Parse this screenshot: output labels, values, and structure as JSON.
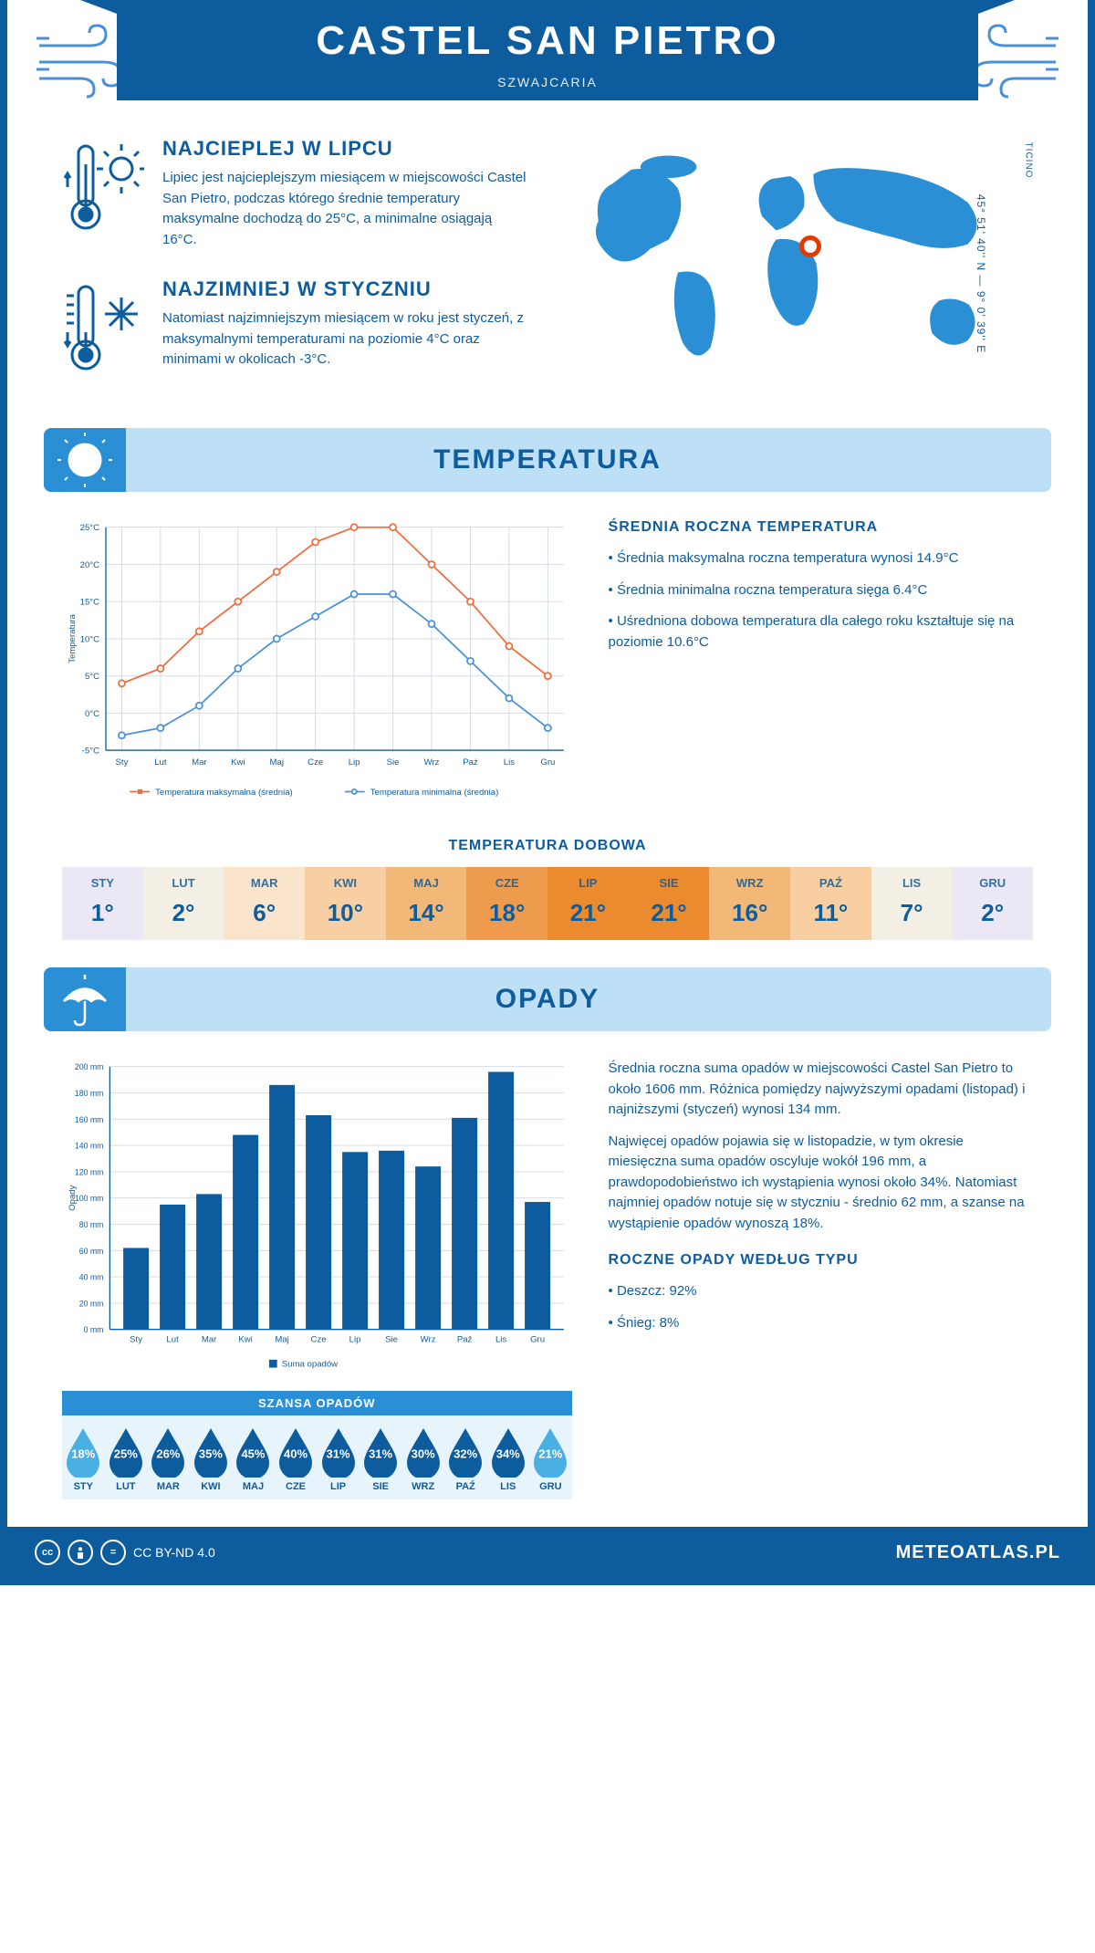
{
  "header": {
    "title": "CASTEL SAN PIETRO",
    "country": "SZWAJCARIA",
    "coords": "45° 51' 40'' N — 9° 0' 39'' E",
    "region": "TICINO"
  },
  "world_marker": {
    "left_pct": 50,
    "top_pct": 36
  },
  "facts": {
    "hot": {
      "title": "NAJCIEPLEJ W LIPCU",
      "text": "Lipiec jest najcieplejszym miesiącem w miejscowości Castel San Pietro, podczas którego średnie temperatury maksymalne dochodzą do 25°C, a minimalne osiągają 16°C."
    },
    "cold": {
      "title": "NAJZIMNIEJ W STYCZNIU",
      "text": "Natomiast najzimniejszym miesiącem w roku jest styczeń, z maksymalnymi temperaturami na poziomie 4°C oraz minimami w okolicach -3°C."
    }
  },
  "months_short": [
    "Sty",
    "Lut",
    "Mar",
    "Kwi",
    "Maj",
    "Cze",
    "Lip",
    "Sie",
    "Wrz",
    "Paź",
    "Lis",
    "Gru"
  ],
  "months_upper": [
    "STY",
    "LUT",
    "MAR",
    "KWI",
    "MAJ",
    "CZE",
    "LIP",
    "SIE",
    "WRZ",
    "PAŹ",
    "LIS",
    "GRU"
  ],
  "temperature": {
    "section_title": "TEMPERATURA",
    "chart": {
      "type": "line",
      "ylabel": "Temperatura",
      "ylim": [
        -5,
        25
      ],
      "yticks": [
        -5,
        0,
        5,
        10,
        15,
        20,
        25
      ],
      "ytick_labels": [
        "-5°C",
        "0°C",
        "5°C",
        "10°C",
        "15°C",
        "20°C",
        "25°C"
      ],
      "grid_color": "#d0d7e2",
      "axis_color": "#0d5c9e",
      "series": [
        {
          "name": "Temperatura maksymalna (średnia)",
          "color": "#f26b3a",
          "values": [
            4,
            6,
            11,
            15,
            19,
            23,
            25,
            25,
            20,
            15,
            9,
            5
          ]
        },
        {
          "name": "Temperatura minimalna (średnia)",
          "color": "#4a90d9",
          "values": [
            -3,
            -2,
            1,
            6,
            10,
            13,
            16,
            16,
            12,
            7,
            2,
            -2
          ]
        }
      ],
      "legend_max": "Temperatura maksymalna (średnia)",
      "legend_min": "Temperatura minimalna (średnia)"
    },
    "summary_title": "ŚREDNIA ROCZNA TEMPERATURA",
    "summary": [
      "• Średnia maksymalna roczna temperatura wynosi 14.9°C",
      "• Średnia minimalna roczna temperatura sięga 6.4°C",
      "• Uśredniona dobowa temperatura dla całego roku kształtuje się na poziomie 10.6°C"
    ],
    "daily_title": "TEMPERATURA DOBOWA",
    "daily": {
      "values": [
        "1°",
        "2°",
        "6°",
        "10°",
        "14°",
        "18°",
        "21°",
        "21°",
        "16°",
        "11°",
        "7°",
        "2°"
      ],
      "bg_colors": [
        "#ece7f4",
        "#f4efe5",
        "#fae4cc",
        "#f7cfa3",
        "#f2b878",
        "#ee9b4d",
        "#ec8a2f",
        "#ec8a2f",
        "#f2b878",
        "#f7cfa3",
        "#f4efe5",
        "#ece7f4"
      ]
    }
  },
  "precip": {
    "section_title": "OPADY",
    "chart": {
      "type": "bar",
      "ylabel": "Opady",
      "ylim": [
        0,
        200
      ],
      "yticks": [
        0,
        20,
        40,
        60,
        80,
        100,
        120,
        140,
        160,
        180,
        200
      ],
      "ytick_labels": [
        "0 mm",
        "20 mm",
        "40 mm",
        "60 mm",
        "80 mm",
        "100 mm",
        "120 mm",
        "140 mm",
        "160 mm",
        "180 mm",
        "200 mm"
      ],
      "bar_color": "#0d5c9e",
      "grid_color": "#d0d7e2",
      "values": [
        62,
        95,
        103,
        148,
        186,
        163,
        135,
        136,
        124,
        161,
        196,
        97
      ],
      "legend": "Suma opadów"
    },
    "text1": "Średnia roczna suma opadów w miejscowości Castel San Pietro to około 1606 mm. Różnica pomiędzy najwyższymi opadami (listopad) i najniższymi (styczeń) wynosi 134 mm.",
    "text2": "Najwięcej opadów pojawia się w listopadzie, w tym okresie miesięczna suma opadów oscyluje wokół 196 mm, a prawdopodobieństwo ich wystąpienia wynosi około 34%. Natomiast najmniej opadów notuje się w styczniu - średnio 62 mm, a szanse na wystąpienie opadów wynoszą 18%.",
    "chance_title": "SZANSA OPADÓW",
    "chance": {
      "values": [
        18,
        25,
        26,
        35,
        45,
        40,
        31,
        31,
        30,
        32,
        34,
        21
      ],
      "color_low": "#4ab0e4",
      "color_high": "#0d5c9e",
      "threshold_high": 24
    },
    "type_title": "ROCZNE OPADY WEDŁUG TYPU",
    "type_lines": [
      "• Deszcz: 92%",
      "• Śnieg: 8%"
    ]
  },
  "footer": {
    "license": "CC BY-ND 4.0",
    "brand": "METEOATLAS.PL"
  }
}
